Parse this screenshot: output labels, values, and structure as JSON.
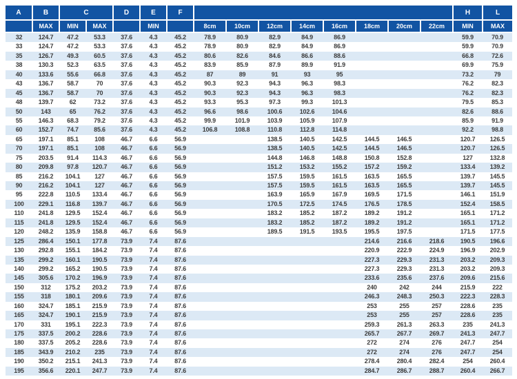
{
  "colors": {
    "header_bg": "#1254a3",
    "header_text": "#ffffff",
    "stripe": "#dce9f5",
    "data_text": "#3c3c3c"
  },
  "table": {
    "header_row1": [
      {
        "label": "A",
        "span": 1
      },
      {
        "label": "B",
        "span": 1
      },
      {
        "label": "C",
        "span": 2
      },
      {
        "label": "D",
        "span": 1
      },
      {
        "label": "E",
        "span": 1
      },
      {
        "label": "F",
        "span": 1
      },
      {
        "label": "",
        "span": 8
      },
      {
        "label": "H",
        "span": 1
      },
      {
        "label": "L",
        "span": 1
      }
    ],
    "header_row2": [
      "",
      "MAX",
      "MIN",
      "MAX",
      "",
      "MIN",
      "",
      "8cm",
      "10cm",
      "12cm",
      "14cm",
      "16cm",
      "18cm",
      "20cm",
      "22cm",
      "MIN",
      "MAX"
    ],
    "rows": [
      [
        "32",
        "124.7",
        "47.2",
        "53.3",
        "37.6",
        "4.3",
        "45.2",
        "78.9",
        "80.9",
        "82.9",
        "84.9",
        "86.9",
        "",
        "",
        "",
        "59.9",
        "70.9"
      ],
      [
        "33",
        "124.7",
        "47.2",
        "53.3",
        "37.6",
        "4.3",
        "45.2",
        "78.9",
        "80.9",
        "82.9",
        "84.9",
        "86.9",
        "",
        "",
        "",
        "59.9",
        "70.9"
      ],
      [
        "35",
        "126.7",
        "49.3",
        "60.5",
        "37.6",
        "4.3",
        "45.2",
        "80.6",
        "82.6",
        "84.6",
        "86.6",
        "88.6",
        "",
        "",
        "",
        "66.8",
        "72.6"
      ],
      [
        "38",
        "130.3",
        "52.3",
        "63.5",
        "37.6",
        "4.3",
        "45.2",
        "83.9",
        "85.9",
        "87.9",
        "89.9",
        "91.9",
        "",
        "",
        "",
        "69.9",
        "75.9"
      ],
      [
        "40",
        "133.6",
        "55.6",
        "66.8",
        "37.6",
        "4.3",
        "45.2",
        "87",
        "89",
        "91",
        "93",
        "95",
        "",
        "",
        "",
        "73.2",
        "79"
      ],
      [
        "43",
        "136.7",
        "58.7",
        "70",
        "37.6",
        "4.3",
        "45.2",
        "90.3",
        "92.3",
        "94.3",
        "96.3",
        "98.3",
        "",
        "",
        "",
        "76.2",
        "82.3"
      ],
      [
        "45",
        "136.7",
        "58.7",
        "70",
        "37.6",
        "4.3",
        "45.2",
        "90.3",
        "92.3",
        "94.3",
        "96.3",
        "98.3",
        "",
        "",
        "",
        "76.2",
        "82.3"
      ],
      [
        "48",
        "139.7",
        "62",
        "73.2",
        "37.6",
        "4.3",
        "45.2",
        "93.3",
        "95.3",
        "97.3",
        "99.3",
        "101.3",
        "",
        "",
        "",
        "79.5",
        "85.3"
      ],
      [
        "50",
        "143",
        "65",
        "76.2",
        "37.6",
        "4.3",
        "45.2",
        "96.6",
        "98.6",
        "100.6",
        "102.6",
        "104.6",
        "",
        "",
        "",
        "82.6",
        "88.6"
      ],
      [
        "55",
        "146.3",
        "68.3",
        "79.2",
        "37.6",
        "4.3",
        "45.2",
        "99.9",
        "101.9",
        "103.9",
        "105.9",
        "107.9",
        "",
        "",
        "",
        "85.9",
        "91.9"
      ],
      [
        "60",
        "152.7",
        "74.7",
        "85.6",
        "37.6",
        "4.3",
        "45.2",
        "106.8",
        "108.8",
        "110.8",
        "112.8",
        "114.8",
        "",
        "",
        "",
        "92.2",
        "98.8"
      ],
      [
        "65",
        "197.1",
        "85.1",
        "108",
        "46.7",
        "6.6",
        "56.9",
        "",
        "",
        "138.5",
        "140.5",
        "142.5",
        "144.5",
        "146.5",
        "",
        "120.7",
        "126.5"
      ],
      [
        "70",
        "197.1",
        "85.1",
        "108",
        "46.7",
        "6.6",
        "56.9",
        "",
        "",
        "138.5",
        "140.5",
        "142.5",
        "144.5",
        "146.5",
        "",
        "120.7",
        "126.5"
      ],
      [
        "75",
        "203.5",
        "91.4",
        "114.3",
        "46.7",
        "6.6",
        "56.9",
        "",
        "",
        "144.8",
        "146.8",
        "148.8",
        "150.8",
        "152.8",
        "",
        "127",
        "132.8"
      ],
      [
        "80",
        "209.8",
        "97.8",
        "120.7",
        "46.7",
        "6.6",
        "56.9",
        "",
        "",
        "151.2",
        "153.2",
        "155.2",
        "157.2",
        "159.2",
        "",
        "133.4",
        "139.2"
      ],
      [
        "85",
        "216.2",
        "104.1",
        "127",
        "46.7",
        "6.6",
        "56.9",
        "",
        "",
        "157.5",
        "159.5",
        "161.5",
        "163.5",
        "165.5",
        "",
        "139.7",
        "145.5"
      ],
      [
        "90",
        "216.2",
        "104.1",
        "127",
        "46.7",
        "6.6",
        "56.9",
        "",
        "",
        "157.5",
        "159.5",
        "161.5",
        "163.5",
        "165.5",
        "",
        "139.7",
        "145.5"
      ],
      [
        "95",
        "222.8",
        "110.5",
        "133.4",
        "46.7",
        "6.6",
        "56.9",
        "",
        "",
        "163.9",
        "165.9",
        "167.9",
        "169.5",
        "171.5",
        "",
        "146.1",
        "151.9"
      ],
      [
        "100",
        "229.1",
        "116.8",
        "139.7",
        "46.7",
        "6.6",
        "56.9",
        "",
        "",
        "170.5",
        "172.5",
        "174.5",
        "176.5",
        "178.5",
        "",
        "152.4",
        "158.5"
      ],
      [
        "110",
        "241.8",
        "129.5",
        "152.4",
        "46.7",
        "6.6",
        "56.9",
        "",
        "",
        "183.2",
        "185.2",
        "187.2",
        "189.2",
        "191.2",
        "",
        "165.1",
        "171.2"
      ],
      [
        "115",
        "241.8",
        "129.5",
        "152.4",
        "46.7",
        "6.6",
        "56.9",
        "",
        "",
        "183.2",
        "185.2",
        "187.2",
        "189.2",
        "191.2",
        "",
        "165.1",
        "171.2"
      ],
      [
        "120",
        "248.2",
        "135.9",
        "158.8",
        "46.7",
        "6.6",
        "56.9",
        "",
        "",
        "189.5",
        "191.5",
        "193.5",
        "195.5",
        "197.5",
        "",
        "171.5",
        "177.5"
      ],
      [
        "125",
        "286.4",
        "150.1",
        "177.8",
        "73.9",
        "7.4",
        "87.6",
        "",
        "",
        "",
        "",
        "",
        "214.6",
        "216.6",
        "218.6",
        "190.5",
        "196.6"
      ],
      [
        "130",
        "292.8",
        "155.1",
        "184.2",
        "73.9",
        "7.4",
        "87.6",
        "",
        "",
        "",
        "",
        "",
        "220.9",
        "222.9",
        "224.9",
        "196.9",
        "202.9"
      ],
      [
        "135",
        "299.2",
        "160.1",
        "190.5",
        "73.9",
        "7.4",
        "87.6",
        "",
        "",
        "",
        "",
        "",
        "227.3",
        "229.3",
        "231.3",
        "203.2",
        "209.3"
      ],
      [
        "140",
        "299.2",
        "165.2",
        "190.5",
        "73.9",
        "7.4",
        "87.6",
        "",
        "",
        "",
        "",
        "",
        "227.3",
        "229.3",
        "231.3",
        "203.2",
        "209.3"
      ],
      [
        "145",
        "305.6",
        "170.2",
        "196.9",
        "73.9",
        "7.4",
        "87.6",
        "",
        "",
        "",
        "",
        "",
        "233.6",
        "235.6",
        "237.6",
        "209.6",
        "215.6"
      ],
      [
        "150",
        "312",
        "175.2",
        "203.2",
        "73.9",
        "7.4",
        "87.6",
        "",
        "",
        "",
        "",
        "",
        "240",
        "242",
        "244",
        "215.9",
        "222"
      ],
      [
        "155",
        "318",
        "180.1",
        "209.6",
        "73.9",
        "7.4",
        "87.6",
        "",
        "",
        "",
        "",
        "",
        "246.3",
        "248.3",
        "250.3",
        "222.3",
        "228.3"
      ],
      [
        "160",
        "324.7",
        "185.1",
        "215.9",
        "73.9",
        "7.4",
        "87.6",
        "",
        "",
        "",
        "",
        "",
        "253",
        "255",
        "257",
        "228.6",
        "235"
      ],
      [
        "165",
        "324.7",
        "190.1",
        "215.9",
        "73.9",
        "7.4",
        "87.6",
        "",
        "",
        "",
        "",
        "",
        "253",
        "255",
        "257",
        "228.6",
        "235"
      ],
      [
        "170",
        "331",
        "195.1",
        "222.3",
        "73.9",
        "7.4",
        "87.6",
        "",
        "",
        "",
        "",
        "",
        "259.3",
        "261.3",
        "263.3",
        "235",
        "241.3"
      ],
      [
        "175",
        "337.5",
        "200.2",
        "228.6",
        "73.9",
        "7.4",
        "87.6",
        "",
        "",
        "",
        "",
        "",
        "265.7",
        "267.7",
        "269.7",
        "241.3",
        "247.7"
      ],
      [
        "180",
        "337.5",
        "205.2",
        "228.6",
        "73.9",
        "7.4",
        "87.6",
        "",
        "",
        "",
        "",
        "",
        "272",
        "274",
        "276",
        "247.7",
        "254"
      ],
      [
        "185",
        "343.9",
        "210.2",
        "235",
        "73.9",
        "7.4",
        "87.6",
        "",
        "",
        "",
        "",
        "",
        "272",
        "274",
        "276",
        "247.7",
        "254"
      ],
      [
        "190",
        "350.2",
        "215.1",
        "241.3",
        "73.9",
        "7.4",
        "87.6",
        "",
        "",
        "",
        "",
        "",
        "278.4",
        "280.4",
        "282.4",
        "254",
        "260.4"
      ],
      [
        "195",
        "356.6",
        "220.1",
        "247.7",
        "73.9",
        "7.4",
        "87.6",
        "",
        "",
        "",
        "",
        "",
        "284.7",
        "286.7",
        "288.7",
        "260.4",
        "266.7"
      ]
    ]
  }
}
